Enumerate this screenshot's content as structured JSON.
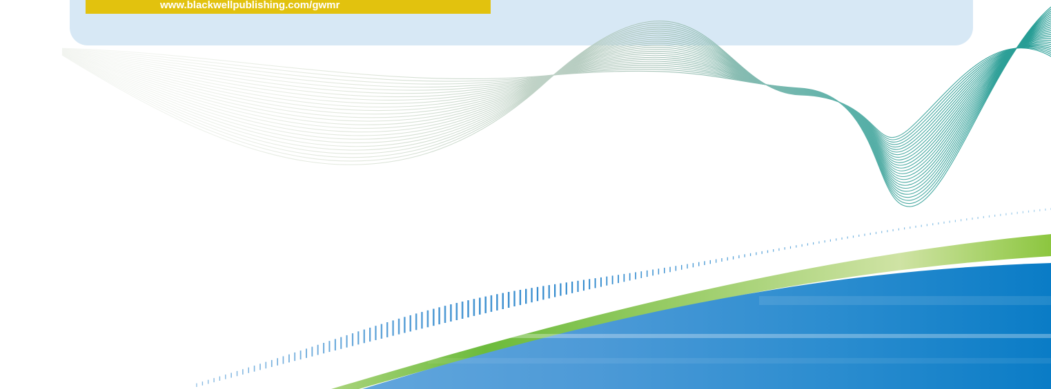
{
  "banner": {
    "url_text": "www.blackwellpublishing.com/gwmr"
  },
  "colors": {
    "panel": "#d7e8f5",
    "banner": "#e2c20e",
    "wave_teal": "#2a9d95",
    "wave_sage": "#c9d6c4",
    "green_band": "#8cc63f",
    "blue_field": "#1a7fc6"
  }
}
